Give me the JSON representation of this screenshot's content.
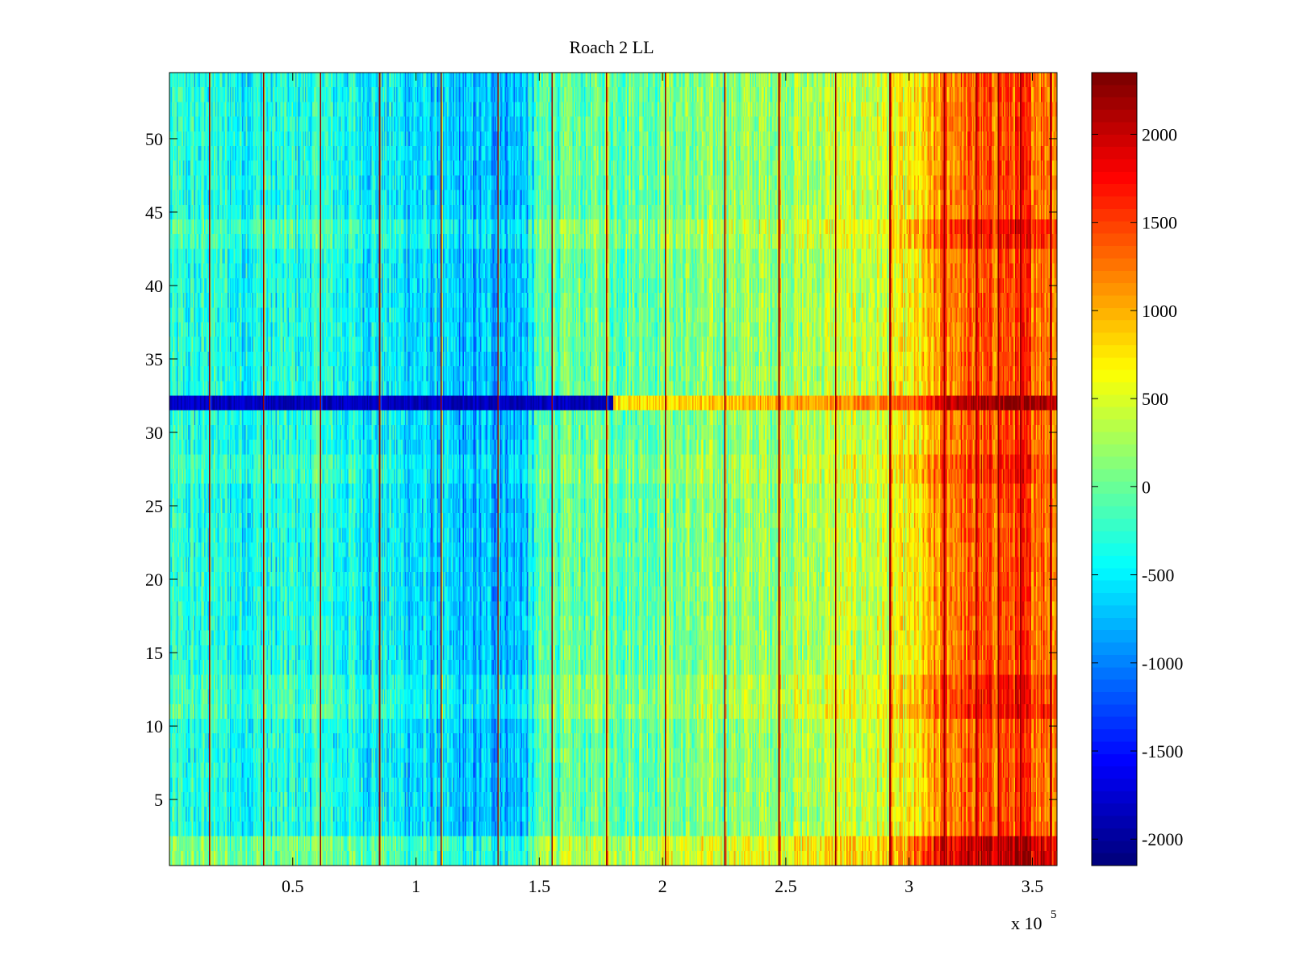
{
  "chart_data": {
    "type": "heatmap",
    "title": "Roach 2 LL",
    "xlabel": "",
    "ylabel": "",
    "xlim": [
      0,
      3.6
    ],
    "ylim": [
      0.5,
      54.5
    ],
    "x_multiplier_label": "x 10",
    "x_multiplier_exponent": "5",
    "x_ticks": [
      0.5,
      1,
      1.5,
      2,
      2.5,
      3,
      3.5
    ],
    "x_tick_labels": [
      "0.5",
      "1",
      "1.5",
      "2",
      "2.5",
      "3",
      "3.5"
    ],
    "y_ticks": [
      5,
      10,
      15,
      20,
      25,
      30,
      35,
      40,
      45,
      50
    ],
    "y_tick_labels": [
      "5",
      "10",
      "15",
      "20",
      "25",
      "30",
      "35",
      "40",
      "45",
      "50"
    ],
    "colormap": "jet",
    "clim": [
      -2150,
      2350
    ],
    "colorbar_ticks": [
      -2000,
      -1500,
      -1000,
      -500,
      0,
      500,
      1000,
      1500,
      2000
    ],
    "colorbar_tick_labels": [
      "-2000",
      "-1500",
      "-1000",
      "-500",
      "0",
      "500",
      "1000",
      "1500",
      "2000"
    ],
    "rows": 54,
    "row_offsets": {
      "1": 400,
      "2": 400,
      "11": 200,
      "12": 150,
      "13": 150,
      "27": 120,
      "28": 120,
      "32": -1500,
      "43": 150,
      "44": 200
    },
    "dark_stripe_row": 32,
    "column_trend": [
      {
        "x": 0.0,
        "value": -350
      },
      {
        "x": 0.3,
        "value": -400
      },
      {
        "x": 0.6,
        "value": -350
      },
      {
        "x": 0.9,
        "value": -500
      },
      {
        "x": 1.2,
        "value": -800
      },
      {
        "x": 1.45,
        "value": -700
      },
      {
        "x": 1.5,
        "value": -150
      },
      {
        "x": 1.8,
        "value": 0
      },
      {
        "x": 2.1,
        "value": 50
      },
      {
        "x": 2.5,
        "value": 250
      },
      {
        "x": 2.9,
        "value": 450
      },
      {
        "x": 3.05,
        "value": 700
      },
      {
        "x": 3.15,
        "value": 1250
      },
      {
        "x": 3.3,
        "value": 1350
      },
      {
        "x": 3.45,
        "value": 1500
      },
      {
        "x": 3.6,
        "value": 1300
      }
    ],
    "vertical_spikes": [
      0.16,
      0.38,
      0.61,
      0.85,
      1.1,
      1.33,
      1.55,
      1.77,
      2.01,
      2.25,
      2.47,
      2.7,
      2.92,
      3.14,
      3.27,
      3.36,
      3.45,
      3.57
    ]
  }
}
